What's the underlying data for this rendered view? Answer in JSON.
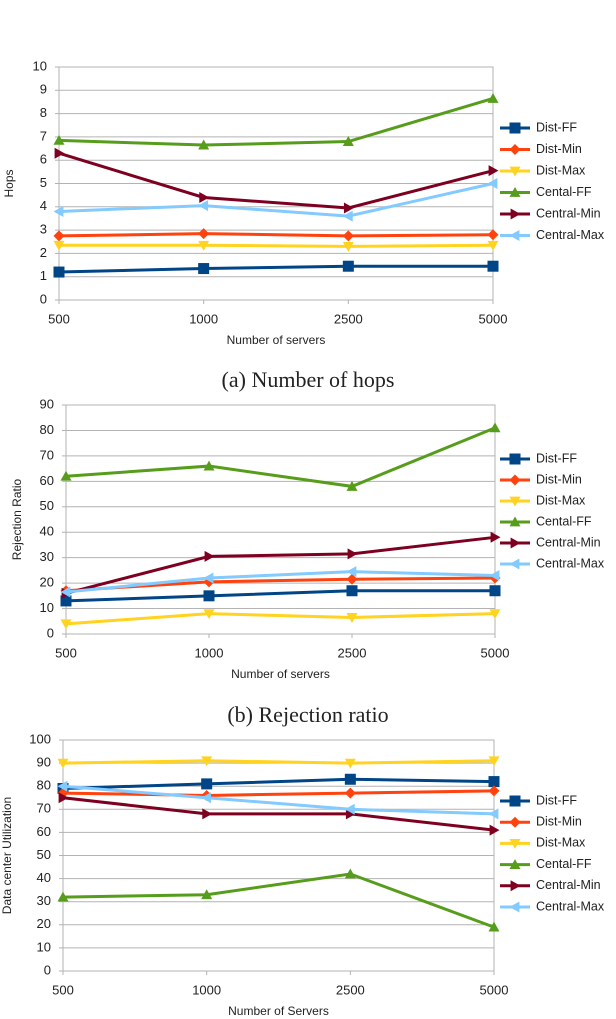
{
  "chart_data": [
    {
      "type": "line",
      "caption": "(a) Number of hops",
      "x_label": "Number of servers",
      "y_label": "Hops",
      "categories": [
        "500",
        "1000",
        "2500",
        "5000"
      ],
      "ylim": [
        0,
        10
      ],
      "yticks": [
        0,
        1,
        2,
        3,
        4,
        5,
        6,
        7,
        8,
        9,
        10
      ],
      "grid": true,
      "legend": "right",
      "series": [
        {
          "name": "Dist-FF",
          "color": "#004586",
          "marker": "square",
          "values": [
            1.2,
            1.35,
            1.45,
            1.45
          ]
        },
        {
          "name": "Dist-Min",
          "color": "#ff420e",
          "marker": "diamond",
          "values": [
            2.75,
            2.85,
            2.75,
            2.8
          ]
        },
        {
          "name": "Dist-Max",
          "color": "#ffd320",
          "marker": "triangle-down",
          "values": [
            2.35,
            2.35,
            2.3,
            2.35
          ]
        },
        {
          "name": "Cental-FF",
          "color": "#579d1c",
          "marker": "triangle-up",
          "values": [
            6.85,
            6.65,
            6.8,
            8.65
          ]
        },
        {
          "name": "Central-Min",
          "color": "#7e0021",
          "marker": "triangle-right",
          "values": [
            6.3,
            4.4,
            3.95,
            5.55
          ]
        },
        {
          "name": "Central-Max",
          "color": "#83caff",
          "marker": "triangle-left",
          "values": [
            3.8,
            4.05,
            3.6,
            5.0
          ]
        }
      ]
    },
    {
      "type": "line",
      "caption": "(b) Rejection ratio",
      "x_label": "Number of servers",
      "y_label": "Rejection Ratio",
      "categories": [
        "500",
        "1000",
        "2500",
        "5000"
      ],
      "ylim": [
        0,
        90
      ],
      "yticks": [
        0,
        10,
        20,
        30,
        40,
        50,
        60,
        70,
        80,
        90
      ],
      "grid": true,
      "legend": "right",
      "series": [
        {
          "name": "Dist-FF",
          "color": "#004586",
          "marker": "square",
          "values": [
            13,
            15,
            17,
            17
          ]
        },
        {
          "name": "Dist-Min",
          "color": "#ff420e",
          "marker": "diamond",
          "values": [
            17,
            20.5,
            21.5,
            22
          ]
        },
        {
          "name": "Dist-Max",
          "color": "#ffd320",
          "marker": "triangle-down",
          "values": [
            4,
            8,
            6.5,
            8
          ]
        },
        {
          "name": "Cental-FF",
          "color": "#579d1c",
          "marker": "triangle-up",
          "values": [
            62,
            66,
            58,
            81
          ]
        },
        {
          "name": "Central-Min",
          "color": "#7e0021",
          "marker": "triangle-right",
          "values": [
            16,
            30.5,
            31.5,
            38
          ]
        },
        {
          "name": "Central-Max",
          "color": "#83caff",
          "marker": "triangle-left",
          "values": [
            16.5,
            22,
            24.5,
            23
          ]
        }
      ]
    },
    {
      "type": "line",
      "x_label": "Number of Servers",
      "y_label": "Data center Utilization",
      "categories": [
        "500",
        "1000",
        "2500",
        "5000"
      ],
      "ylim": [
        0,
        100
      ],
      "yticks": [
        0,
        10,
        20,
        30,
        40,
        50,
        60,
        70,
        80,
        90,
        100
      ],
      "grid": true,
      "legend": "right",
      "series": [
        {
          "name": "Dist-FF",
          "color": "#004586",
          "marker": "square",
          "values": [
            79,
            81,
            83,
            82
          ]
        },
        {
          "name": "Dist-Min",
          "color": "#ff420e",
          "marker": "diamond",
          "values": [
            77,
            76,
            77,
            78
          ]
        },
        {
          "name": "Dist-Max",
          "color": "#ffd320",
          "marker": "triangle-down",
          "values": [
            90,
            91,
            90,
            91
          ]
        },
        {
          "name": "Cental-FF",
          "color": "#579d1c",
          "marker": "triangle-up",
          "values": [
            32,
            33,
            42,
            19
          ]
        },
        {
          "name": "Central-Min",
          "color": "#7e0021",
          "marker": "triangle-right",
          "values": [
            75,
            68,
            68,
            61
          ]
        },
        {
          "name": "Central-Max",
          "color": "#83caff",
          "marker": "triangle-left",
          "values": [
            80,
            75,
            70,
            68
          ]
        }
      ]
    }
  ]
}
